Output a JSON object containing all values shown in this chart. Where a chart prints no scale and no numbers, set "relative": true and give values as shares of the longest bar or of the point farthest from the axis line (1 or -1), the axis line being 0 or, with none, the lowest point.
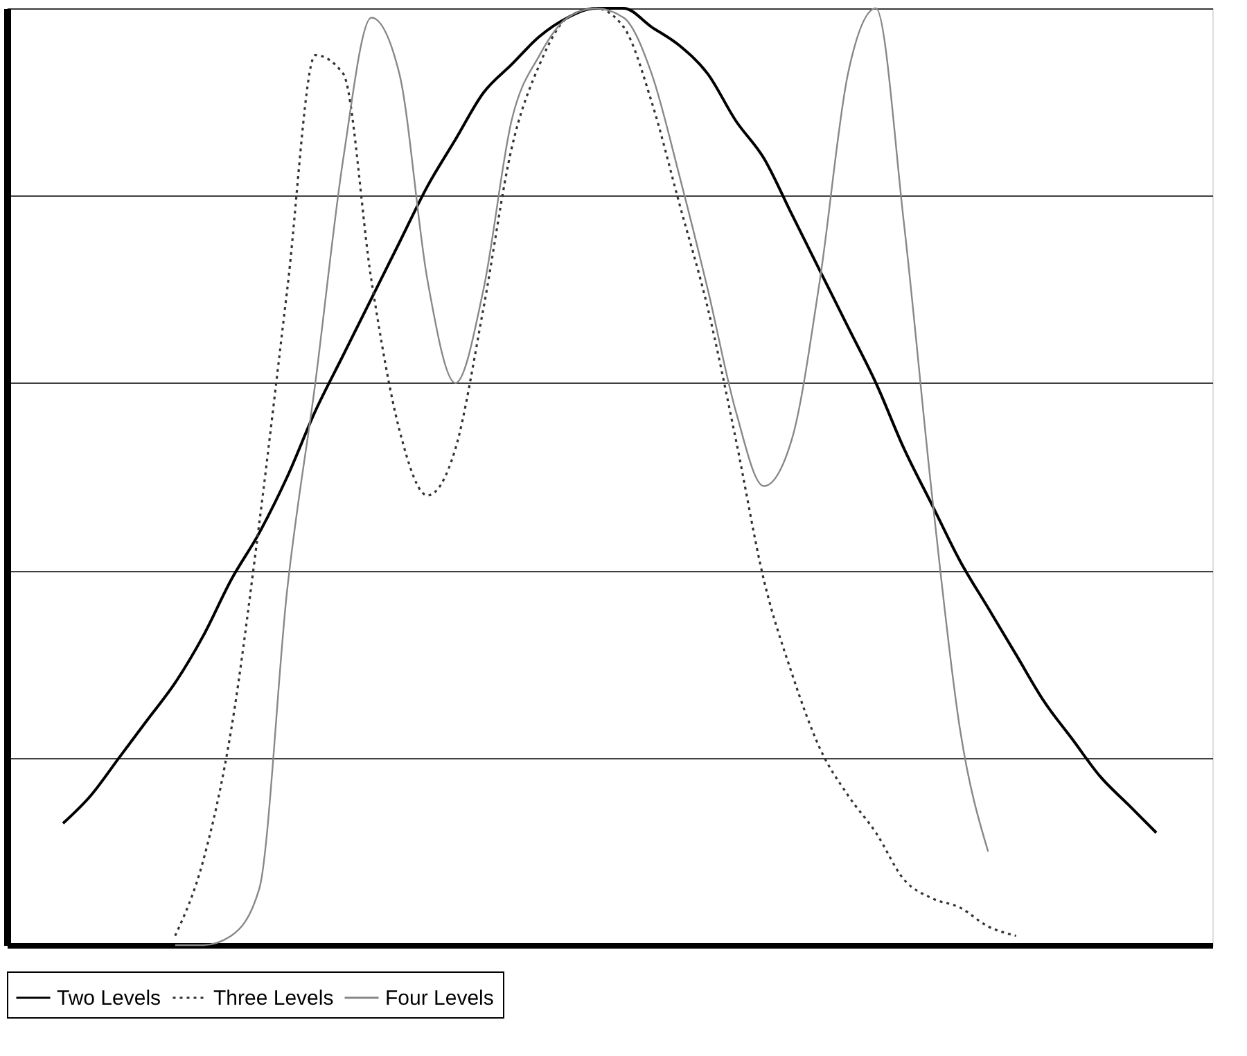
{
  "chart_data": {
    "type": "line",
    "relative": true,
    "grid": "y",
    "legend": "bottom",
    "tick_labels": false,
    "categories": [
      null,
      null,
      null,
      null,
      null,
      null,
      null,
      null,
      null,
      null,
      null,
      null,
      null,
      null,
      null,
      null,
      null,
      null,
      null,
      null,
      null,
      null,
      null,
      null,
      null,
      null,
      null,
      null,
      null,
      null,
      null,
      null,
      null,
      null,
      null,
      null,
      null,
      null,
      null,
      null
    ],
    "series": [
      {
        "name": "Two Levels",
        "color": "#000000",
        "line_style": "solid",
        "values": [
          0.13,
          0.16,
          0.2,
          0.24,
          0.28,
          0.33,
          0.39,
          0.44,
          0.5,
          0.57,
          0.63,
          0.69,
          0.75,
          0.81,
          0.86,
          0.91,
          0.94,
          0.97,
          0.99,
          1.0,
          1.0,
          0.98,
          0.96,
          0.93,
          0.88,
          0.84,
          0.78,
          0.72,
          0.66,
          0.6,
          0.53,
          0.47,
          0.41,
          0.36,
          0.31,
          0.26,
          0.22,
          0.18,
          0.15,
          0.12
        ]
      },
      {
        "name": "Three Levels",
        "color": "#333333",
        "line_style": "dotted",
        "values": [
          null,
          null,
          null,
          null,
          0.01,
          0.09,
          0.23,
          0.45,
          0.7,
          0.95,
          0.93,
          0.71,
          0.55,
          0.48,
          0.53,
          0.68,
          0.85,
          0.94,
          0.99,
          1.0,
          0.98,
          0.9,
          0.79,
          0.68,
          0.54,
          0.39,
          0.29,
          0.21,
          0.16,
          0.12,
          0.07,
          0.05,
          0.04,
          0.02,
          0.01,
          null,
          null,
          null,
          null,
          null
        ]
      },
      {
        "name": "Four Levels",
        "color": "#888888",
        "line_style": "solid",
        "values": [
          null,
          null,
          null,
          null,
          0.0,
          0.0,
          0.01,
          0.06,
          0.38,
          0.6,
          0.84,
          0.99,
          0.93,
          0.71,
          0.6,
          0.7,
          0.88,
          0.95,
          0.99,
          1.0,
          0.99,
          0.93,
          0.82,
          0.7,
          0.57,
          0.49,
          0.54,
          0.71,
          0.93,
          1.0,
          0.77,
          0.48,
          0.23,
          0.1,
          null,
          null,
          null,
          null,
          null,
          null
        ]
      }
    ]
  }
}
